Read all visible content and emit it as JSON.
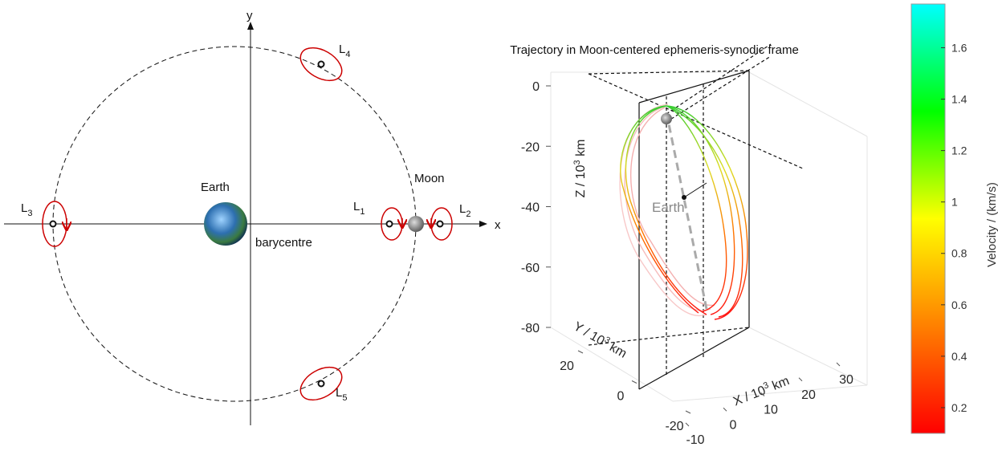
{
  "diagram": {
    "axis_x": "x",
    "axis_y": "y",
    "earth": "Earth",
    "moon": "Moon",
    "barycentre": "barycentre",
    "points": [
      {
        "letter": "L",
        "sub": "1"
      },
      {
        "letter": "L",
        "sub": "2"
      },
      {
        "letter": "L",
        "sub": "3"
      },
      {
        "letter": "L",
        "sub": "4"
      },
      {
        "letter": "L",
        "sub": "5"
      }
    ]
  },
  "plot": {
    "title": "Trajectory in Moon-centered ephemeris-synodic frame",
    "earth": "Earth",
    "z_label": {
      "text": "Z / 10",
      "sup": "3",
      "unit": " km"
    },
    "y_label": {
      "text": "Y / 10",
      "sup": "3",
      "unit": " km"
    },
    "x_label": {
      "text": "X / 10",
      "sup": "3",
      "unit": " km"
    },
    "zticks": [
      0,
      -20,
      -40,
      -60,
      -80
    ],
    "zlim": [
      -80,
      0
    ],
    "yticks": [
      20,
      0,
      -20
    ],
    "ylim": [
      -20,
      20
    ],
    "xticks": [
      -10,
      0,
      10,
      20,
      30
    ],
    "xlim": [
      -10,
      30
    ],
    "colorbar": {
      "label": "Velocity / (km/s)",
      "clim": [
        0.1,
        1.77
      ],
      "ticks": [
        0.2,
        0.4,
        0.6,
        0.8,
        1,
        1.2,
        1.4,
        1.6
      ],
      "colors": [
        "#ff0000",
        "#ff8000",
        "#ffff00",
        "#00ff00",
        "#00ffff"
      ]
    }
  }
}
